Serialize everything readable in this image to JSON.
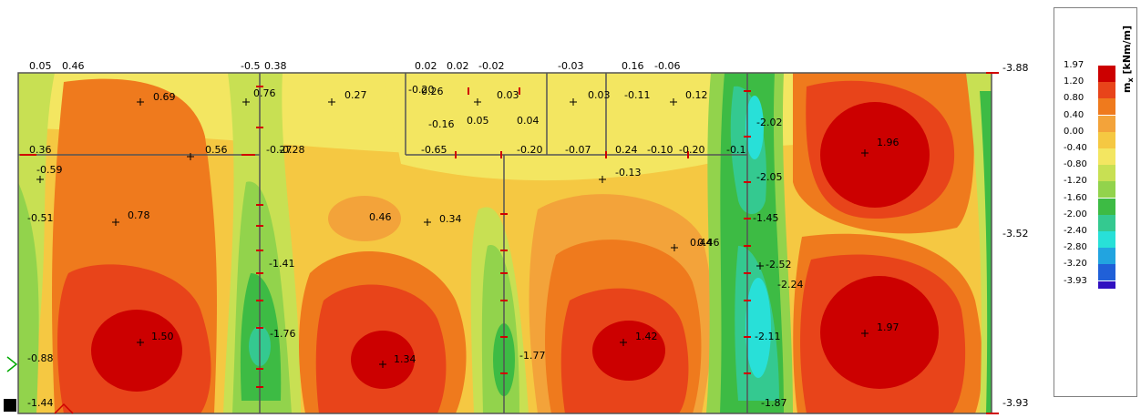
{
  "chart_data": {
    "type": "heatmap",
    "legend": {
      "title": "m",
      "title_sub": "x",
      "unit": "[kNm/m]",
      "levels": [
        "1.97",
        "1.20",
        "0.80",
        "0.40",
        "0.00",
        "-0.40",
        "-0.80",
        "-1.20",
        "-1.60",
        "-2.00",
        "-2.40",
        "-2.80",
        "-3.20",
        "-3.93"
      ],
      "colors": [
        "#cc0000",
        "#e8441a",
        "#ef7a1d",
        "#f3a33a",
        "#f5c842",
        "#f3e661",
        "#c8e053",
        "#92d34c",
        "#3dbb44",
        "#34c990",
        "#28e0d8",
        "#22a4e0",
        "#2060d8",
        "#3010c0"
      ],
      "position": "right"
    },
    "edge_values": [
      {
        "text": "-3.88",
        "side": "right"
      },
      {
        "text": "-3.52",
        "side": "right"
      },
      {
        "text": "-3.93",
        "side": "right"
      }
    ],
    "top_labels": [
      "0.05",
      "0.46",
      "-0.5",
      "0.38",
      "0.02",
      "0.02",
      "-0.02",
      "-0.03",
      "0.16",
      "-0.06"
    ],
    "value_labels": [
      "0.69",
      "0.76",
      "0.27",
      "-0.20",
      "0.26",
      "0.03",
      "0.03",
      "-0.11",
      "0.12",
      "-0.16",
      "0.05",
      "0.04",
      "0.36",
      "-0.59",
      "0.56",
      "-0.27",
      "-0.28",
      "-0.65",
      "-0.20",
      "-0.07",
      "0.24",
      "-0.10",
      "-0.20",
      "-0.1",
      "-2.02",
      "1.96",
      "-2.05",
      "-0.13",
      "-0.51",
      "0.78",
      "0.46",
      "0.34",
      "0.44",
      "0.46",
      "-1.45",
      "-1.41",
      "-2.52",
      "-2.24",
      "1.50",
      "-1.76",
      "1.34",
      "-1.77",
      "1.42",
      "-2.11",
      "1.97",
      "-0.88",
      "-1.44",
      "-1.87"
    ]
  }
}
